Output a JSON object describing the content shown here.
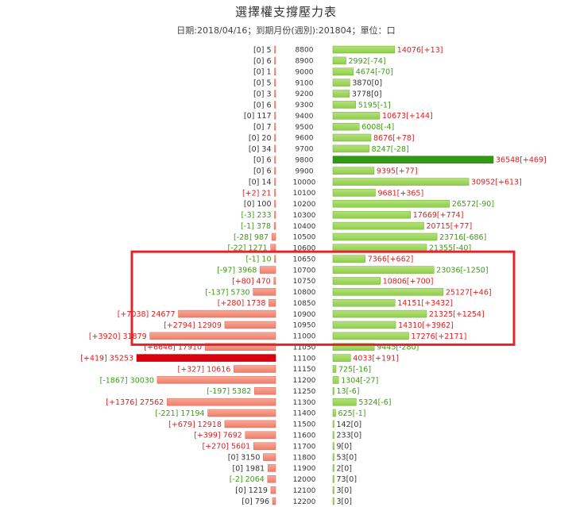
{
  "header": {
    "title": "選擇權支撐壓力表",
    "subtitle": "日期:2018/04/16；到期月份(週別):201804；單位：口"
  },
  "colors": {
    "call_bar": "#8fcf4a",
    "call_bar_max": "#2f9a12",
    "put_bar": "#ef7d6a",
    "put_bar_max": "#d9000f",
    "text_red": "#dd1f1f",
    "text_green": "#3f9a14",
    "text_neutral": "#333333",
    "highlight_box": "#e0262b"
  },
  "chart_data": {
    "type": "bar",
    "orientation": "horizontal-butterfly",
    "left_series_name": "",
    "right_series_name": "",
    "strikes": [
      "8800",
      "8900",
      "9000",
      "9100",
      "9200",
      "9300",
      "9400",
      "9500",
      "9600",
      "9700",
      "9800",
      "9900",
      "10000",
      "10100",
      "10200",
      "10300",
      "10400",
      "10500",
      "10600",
      "10650",
      "10700",
      "10750",
      "10800",
      "10850",
      "10900",
      "10950",
      "11000",
      "11050",
      "11100",
      "11150",
      "11200",
      "11250",
      "11300",
      "11400",
      "11500",
      "11600",
      "11700",
      "11800",
      "11900",
      "12000",
      "12100",
      "12200"
    ],
    "left_values": [
      5,
      6,
      1,
      5,
      3,
      6,
      117,
      7,
      20,
      34,
      6,
      6,
      14,
      21,
      100,
      233,
      378,
      987,
      1271,
      10,
      3968,
      470,
      5730,
      1738,
      24677,
      12909,
      31879,
      17910,
      35253,
      10616,
      30030,
      5382,
      27562,
      17194,
      12918,
      7692,
      5601,
      3150,
      1981,
      2064,
      1219,
      796
    ],
    "left_changes": [
      "0",
      "0",
      "0",
      "0",
      "0",
      "0",
      "0",
      "0",
      "0",
      "0",
      "0",
      "0",
      "0",
      "+2",
      "0",
      "-3",
      "-1",
      "-28",
      "-22",
      "-1",
      "-97",
      "+80",
      "-137",
      "+280",
      "+7038",
      "+2794",
      "+3920",
      "+6646",
      "+419",
      "+327",
      "-1867",
      "-197",
      "+1376",
      "-221",
      "+679",
      "+399",
      "+270",
      "0",
      "0",
      "-2",
      "0",
      "0"
    ],
    "left_labels": [
      "[0] 5",
      "[0] 6",
      "[0] 1",
      "[0] 5",
      "[0] 3",
      "[0] 6",
      "[0] 117",
      "[0] 7",
      "[0] 20",
      "[0] 34",
      "[0] 6",
      "[0] 6",
      "[0] 14",
      "[+2] 21",
      "[0] 100",
      "[-3] 233",
      "[-1] 378",
      "[-28] 987",
      "[-22] 1271",
      "[-1] 10",
      "[-97] 3968",
      "[+80] 470",
      "[-137] 5730",
      "[+280] 1738",
      "[+7038] 24677",
      "[+2794] 12909",
      "[+3920] 31879",
      "[+6646] 17910",
      "[+419] 35253",
      "[+327] 10616",
      "[-1867] 30030",
      "[-197] 5382",
      "[+1376] 27562",
      "[-221] 17194",
      "[+679] 12918",
      "[+399] 7692",
      "[+270] 5601",
      "[0] 3150",
      "[0] 1981",
      "[-2] 2064",
      "[0] 1219",
      "[0] 796"
    ],
    "right_values": [
      14076,
      2992,
      4674,
      3870,
      3778,
      5195,
      10673,
      6008,
      8676,
      8247,
      36548,
      9395,
      30952,
      9681,
      26572,
      17669,
      20715,
      23716,
      21355,
      7366,
      23036,
      10806,
      25127,
      14151,
      21325,
      14310,
      17276,
      9445,
      4033,
      725,
      1304,
      13,
      5324,
      625,
      142,
      233,
      9,
      53,
      2,
      73,
      3,
      3
    ],
    "right_changes": [
      "+13",
      "-74",
      "-70",
      "0",
      "0",
      "-1",
      "+144",
      "-4",
      "+78",
      "-28",
      "+469",
      "+77",
      "+613",
      "+365",
      "-90",
      "+774",
      "+77",
      "-686",
      "-40",
      "+662",
      "-1250",
      "+700",
      "+46",
      "+3432",
      "+1254",
      "+3962",
      "+2171",
      "-280",
      "+191",
      "-16",
      "-27",
      "-6",
      "-6",
      "-1",
      "0",
      "0",
      "0",
      "0",
      "0",
      "0",
      "0",
      "0"
    ],
    "right_labels": [
      "14076[+13]",
      "2992[-74]",
      "4674[-70]",
      "3870[0]",
      "3778[0]",
      "5195[-1]",
      "10673[+144]",
      "6008[-4]",
      "8676[+78]",
      "8247[-28]",
      "36548[+469]",
      "9395[+77]",
      "30952[+613]",
      "9681[+365]",
      "26572[-90]",
      "17669[+774]",
      "20715[+77]",
      "23716[-686]",
      "21355[-40]",
      "7366[+662]",
      "23036[-1250]",
      "10806[+700]",
      "25127[+46]",
      "14151[+3432]",
      "21325[+1254]",
      "14310[+3962]",
      "17276[+2171]",
      "9445[-280]",
      "4033[+191]",
      "725[-16]",
      "1304[-27]",
      "13[-6]",
      "5324[-6]",
      "625[-1]",
      "142[0]",
      "233[0]",
      "9[0]",
      "53[0]",
      "2[0]",
      "73[0]",
      "3[0]",
      "3[0]"
    ],
    "left_max_index": 28,
    "right_max_index": 10,
    "highlight": {
      "from_strike": "10650",
      "to_strike": "11000"
    },
    "grid": false,
    "legend": "none"
  }
}
